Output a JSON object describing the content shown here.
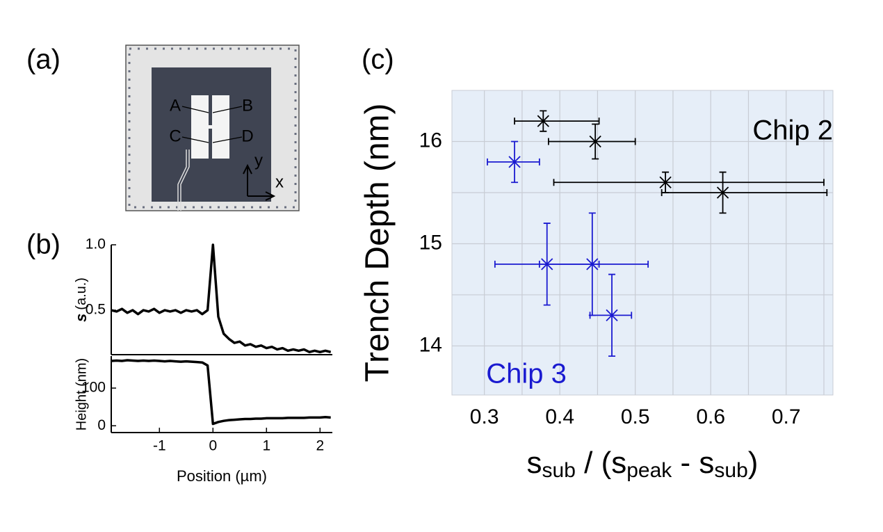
{
  "panel_a": {
    "label": "(a)",
    "annotations": [
      "A",
      "B",
      "C",
      "D"
    ],
    "axes": [
      "y",
      "x"
    ]
  },
  "chart_data": [
    {
      "type": "line",
      "panel_label": "(b)",
      "color": "#000000",
      "ylabel_symbol": "s",
      "ylabel": "(a.u.)",
      "x": [
        -1.9,
        -1.8,
        -1.7,
        -1.6,
        -1.5,
        -1.4,
        -1.3,
        -1.2,
        -1.1,
        -1.0,
        -0.9,
        -0.8,
        -0.7,
        -0.6,
        -0.5,
        -0.4,
        -0.3,
        -0.2,
        -0.1,
        0.0,
        0.1,
        0.2,
        0.3,
        0.4,
        0.5,
        0.6,
        0.7,
        0.8,
        0.9,
        1.0,
        1.1,
        1.2,
        1.3,
        1.4,
        1.5,
        1.6,
        1.7,
        1.8,
        1.9,
        2.0,
        2.1,
        2.2
      ],
      "values": [
        0.5,
        0.49,
        0.51,
        0.48,
        0.5,
        0.47,
        0.5,
        0.49,
        0.51,
        0.48,
        0.5,
        0.49,
        0.5,
        0.48,
        0.5,
        0.49,
        0.5,
        0.47,
        0.5,
        1.0,
        0.45,
        0.32,
        0.28,
        0.25,
        0.26,
        0.23,
        0.24,
        0.22,
        0.23,
        0.21,
        0.22,
        0.2,
        0.21,
        0.19,
        0.2,
        0.19,
        0.2,
        0.18,
        0.19,
        0.18,
        0.19,
        0.18
      ],
      "xlim": [
        -1.9,
        2.23
      ],
      "ylim": [
        0.16,
        1.0
      ],
      "yticks": [
        0.5,
        {
          "value": 1,
          "label": "1.0"
        }
      ]
    },
    {
      "type": "line",
      "color": "#000000",
      "xlabel": "Position (µm)",
      "ylabel": "Height (nm)",
      "x": [
        -1.9,
        -1.8,
        -1.7,
        -1.6,
        -1.5,
        -1.4,
        -1.3,
        -1.2,
        -1.1,
        -1.0,
        -0.9,
        -0.8,
        -0.7,
        -0.6,
        -0.5,
        -0.4,
        -0.3,
        -0.2,
        -0.1,
        0.0,
        0.1,
        0.2,
        0.3,
        0.4,
        0.5,
        0.6,
        0.7,
        0.8,
        0.9,
        1.0,
        1.1,
        1.2,
        1.3,
        1.4,
        1.5,
        1.6,
        1.7,
        1.8,
        1.9,
        2.0,
        2.1,
        2.2
      ],
      "values": [
        172,
        173,
        172,
        174,
        173,
        172,
        173,
        172,
        173,
        172,
        171,
        172,
        171,
        170,
        171,
        170,
        169,
        168,
        160,
        5,
        10,
        13,
        15,
        16,
        17,
        18,
        18,
        19,
        19,
        20,
        20,
        20,
        20,
        21,
        21,
        21,
        21,
        22,
        22,
        22,
        23,
        22
      ],
      "xlim": [
        -1.9,
        2.23
      ],
      "ylim": [
        -18,
        185
      ],
      "xticks": [
        -1,
        0,
        1,
        2
      ],
      "yticks": [
        0,
        100
      ]
    },
    {
      "type": "scatter",
      "panel_label": "(c)",
      "ylabel": "Trench Depth (nm)",
      "xlabel_parts": [
        "s",
        "sub",
        " / (s",
        "peak",
        " - s",
        "sub",
        ")"
      ],
      "xlim": [
        0.257,
        0.762
      ],
      "ylim": [
        13.52,
        16.5
      ],
      "xticks": [
        0.3,
        0.4,
        0.5,
        0.6,
        0.7
      ],
      "yticks": [
        14,
        15,
        16
      ],
      "minor_xticks": [
        0.35,
        0.45,
        0.55,
        0.65,
        0.75
      ],
      "minor_yticks": [
        14.5,
        15.5
      ],
      "grid": true,
      "background": "#e6eef8",
      "series": [
        {
          "name": "Chip 2",
          "color": "#000000",
          "x": [
            0.378,
            0.447,
            0.54,
            0.616
          ],
          "values": [
            16.2,
            16.0,
            15.6,
            15.5
          ],
          "xerr_minus": [
            0.038,
            0.062,
            0.148,
            0.081
          ],
          "xerr_plus": [
            0.074,
            0.053,
            0.21,
            0.138
          ],
          "yerr": [
            0.1,
            0.17,
            0.1,
            0.2
          ]
        },
        {
          "name": "Chip 3",
          "color": "#1a1ad0",
          "x": [
            0.34,
            0.383,
            0.443,
            0.469
          ],
          "values": [
            15.8,
            14.8,
            14.8,
            14.3
          ],
          "xerr_minus": [
            0.036,
            0.069,
            0.07,
            0.029
          ],
          "xerr_plus": [
            0.033,
            0.069,
            0.074,
            0.026
          ],
          "yerr": [
            0.2,
            0.4,
            0.5,
            0.4
          ]
        }
      ]
    }
  ]
}
